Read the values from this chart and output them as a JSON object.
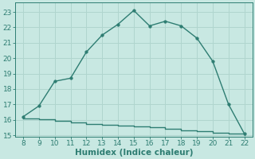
{
  "line1_x": [
    8,
    9,
    10,
    11,
    12,
    13,
    14,
    15,
    16,
    17,
    18,
    19,
    20,
    21,
    22
  ],
  "line1_y": [
    16.2,
    16.9,
    18.5,
    18.7,
    20.4,
    21.5,
    22.2,
    23.1,
    22.1,
    22.4,
    22.1,
    21.3,
    19.8,
    17.0,
    15.1
  ],
  "line2_x": [
    8,
    9,
    10,
    11,
    12,
    13,
    14,
    15,
    16,
    17,
    18,
    19,
    20,
    21,
    22
  ],
  "line2_y": [
    16.1,
    16.05,
    15.95,
    15.85,
    15.75,
    15.68,
    15.62,
    15.56,
    15.5,
    15.44,
    15.32,
    15.25,
    15.18,
    15.1,
    15.0
  ],
  "line_color": "#2e7d72",
  "bg_color": "#c8e8e2",
  "grid_color": "#b0d5ce",
  "xlabel": "Humidex (Indice chaleur)",
  "xlim": [
    7.5,
    22.5
  ],
  "ylim": [
    14.9,
    23.6
  ],
  "yticks": [
    15,
    16,
    17,
    18,
    19,
    20,
    21,
    22,
    23
  ],
  "xticks": [
    8,
    9,
    10,
    11,
    12,
    13,
    14,
    15,
    16,
    17,
    18,
    19,
    20,
    21,
    22
  ],
  "marker": "o",
  "markersize": 2.5,
  "linewidth": 1.0,
  "xlabel_fontsize": 7.5,
  "tick_fontsize": 6.5
}
